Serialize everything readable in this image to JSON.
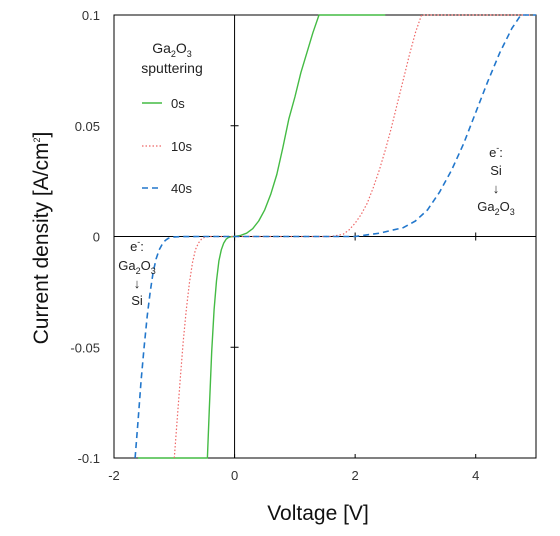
{
  "chart_data": {
    "type": "line",
    "title": "",
    "xlabel": "Voltage [V]",
    "ylabel_main": "Current density [A/cm",
    "ylabel_sup": "2",
    "ylabel_close": "]",
    "xlim": [
      -2,
      5
    ],
    "ylim": [
      -0.1,
      0.1
    ],
    "x_ticks": [
      -2,
      0,
      2,
      4
    ],
    "x_tick_labels": [
      "-2",
      "0",
      "2",
      "4"
    ],
    "y_ticks": [
      -0.1,
      -0.05,
      0,
      0.05,
      0.1
    ],
    "y_tick_labels": [
      "-0.1",
      "-0.05",
      "0",
      "0.05",
      "0.1"
    ],
    "grid": false,
    "legend": {
      "placement": "upper-left",
      "title_prefix": "Ga",
      "title_sub1": "2",
      "title_mid": "O",
      "title_sub2": "3",
      "title_line2": "sputtering"
    },
    "series": [
      {
        "name": "0s",
        "color": "#44bb44",
        "dash": "solid",
        "x": [
          -1.6,
          -0.45,
          -0.42,
          -0.38,
          -0.34,
          -0.3,
          -0.26,
          -0.22,
          -0.18,
          -0.14,
          -0.1,
          -0.06,
          0,
          0.1,
          0.2,
          0.3,
          0.4,
          0.5,
          0.6,
          0.7,
          0.8,
          0.9,
          1.0,
          1.1,
          1.2,
          1.3,
          1.4,
          2.5
        ],
        "y": [
          -0.1,
          -0.1,
          -0.078,
          -0.052,
          -0.033,
          -0.02,
          -0.011,
          -0.006,
          -0.003,
          -0.0012,
          -0.0004,
          -0.0001,
          0,
          0.0005,
          0.0015,
          0.0035,
          0.007,
          0.012,
          0.019,
          0.028,
          0.04,
          0.053,
          0.063,
          0.074,
          0.083,
          0.092,
          0.1,
          0.1
        ]
      },
      {
        "name": "10s",
        "color": "#ee6666",
        "dash": "dotted",
        "x": [
          -1.0,
          -0.95,
          -0.9,
          -0.85,
          -0.8,
          -0.75,
          -0.7,
          -0.65,
          -0.6,
          -0.55,
          -0.5,
          -0.45,
          -0.4,
          -0.3,
          0,
          1.6,
          1.8,
          1.9,
          2.0,
          2.1,
          2.2,
          2.3,
          2.4,
          2.5,
          2.6,
          2.7,
          2.8,
          2.9,
          3.0,
          3.1,
          4.9
        ],
        "y": [
          -0.1,
          -0.082,
          -0.064,
          -0.047,
          -0.033,
          -0.021,
          -0.012,
          -0.006,
          -0.003,
          -0.0012,
          -0.0004,
          -0.0001,
          0,
          0,
          0,
          0,
          0.001,
          0.003,
          0.006,
          0.01,
          0.015,
          0.022,
          0.03,
          0.039,
          0.049,
          0.06,
          0.071,
          0.082,
          0.092,
          0.1,
          0.1
        ]
      },
      {
        "name": "40s",
        "color": "#2277cc",
        "dash": "dashed",
        "x": [
          -1.65,
          -1.6,
          -1.55,
          -1.5,
          -1.45,
          -1.4,
          -1.35,
          -1.3,
          -1.25,
          -1.2,
          -1.15,
          -1.1,
          -1.0,
          -0.9,
          -0.6,
          0,
          2.0,
          2.4,
          2.8,
          3.0,
          3.2,
          3.4,
          3.6,
          3.8,
          4.0,
          4.2,
          4.4,
          4.6,
          4.75,
          5.0
        ],
        "y": [
          -0.1,
          -0.083,
          -0.065,
          -0.05,
          -0.036,
          -0.025,
          -0.016,
          -0.01,
          -0.006,
          -0.0035,
          -0.0018,
          -0.0008,
          -0.0002,
          -5e-05,
          0,
          0,
          0,
          0.0015,
          0.004,
          0.007,
          0.012,
          0.02,
          0.03,
          0.042,
          0.056,
          0.07,
          0.083,
          0.094,
          0.1,
          0.1
        ]
      }
    ],
    "annotations": [
      {
        "id": "forward",
        "line1": "e",
        "line1_sup": "-",
        "line1_tail": ":",
        "line2": "Si",
        "arrow": "↓",
        "line3_prefix": "Ga",
        "line3_sub1": "2",
        "line3_mid": "O",
        "line3_sub2": "3"
      },
      {
        "id": "reverse",
        "line1": "e",
        "line1_sup": "-",
        "line1_tail": ":",
        "line2_prefix": "Ga",
        "line2_sub1": "2",
        "line2_mid": "O",
        "line2_sub2": "3",
        "arrow": "↓",
        "line3": "Si"
      }
    ]
  }
}
